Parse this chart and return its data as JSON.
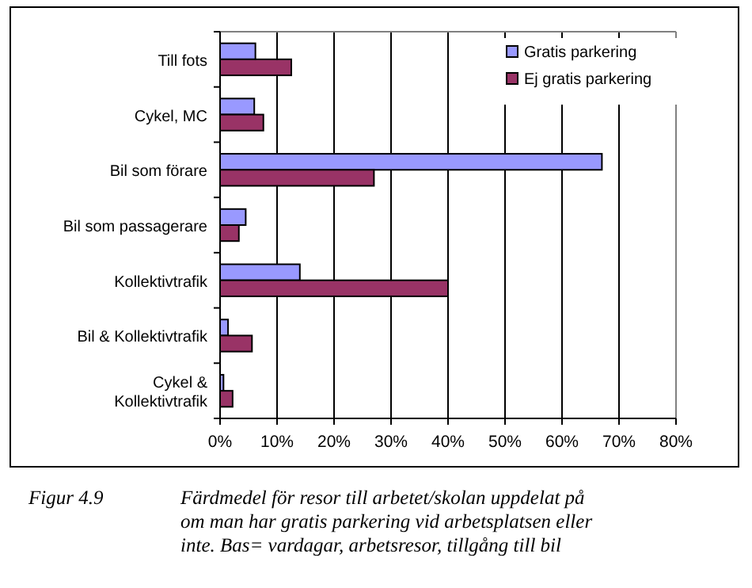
{
  "chart_data": {
    "type": "bar",
    "orientation": "horizontal",
    "categories": [
      "Till fots",
      "Cykel, MC",
      "Bil som förare",
      "Bil som passagerare",
      "Kollektivtrafik",
      "Bil & Kollektivtrafik",
      "Cykel & Kollektivtrafik"
    ],
    "series": [
      {
        "name": "Gratis parkering",
        "color": "#9999ff",
        "values": [
          6.2,
          6.0,
          67,
          4.5,
          14,
          1.4,
          0.6
        ]
      },
      {
        "name": "Ej gratis parkering",
        "color": "#993366",
        "values": [
          12.5,
          7.6,
          27,
          3.3,
          40,
          5.6,
          2.2
        ]
      }
    ],
    "xlim": [
      0,
      80
    ],
    "xticks": [
      {
        "value": 0,
        "label": "0%"
      },
      {
        "value": 10,
        "label": "10%"
      },
      {
        "value": 20,
        "label": "20%"
      },
      {
        "value": 30,
        "label": "30%"
      },
      {
        "value": 40,
        "label": "40%"
      },
      {
        "value": 50,
        "label": "50%"
      },
      {
        "value": 60,
        "label": "60%"
      },
      {
        "value": 70,
        "label": "70%"
      },
      {
        "value": 80,
        "label": "80%"
      }
    ],
    "grid": "x",
    "legend": "top right",
    "annotations": [
      "Figur 4.9",
      "Färdmedel för resor till arbetet/skolan uppdelat på om man har gratis parkering vid arbetsplatsen eller inte. Bas= vardagar, arbetsresor, tillgång till bil"
    ]
  }
}
